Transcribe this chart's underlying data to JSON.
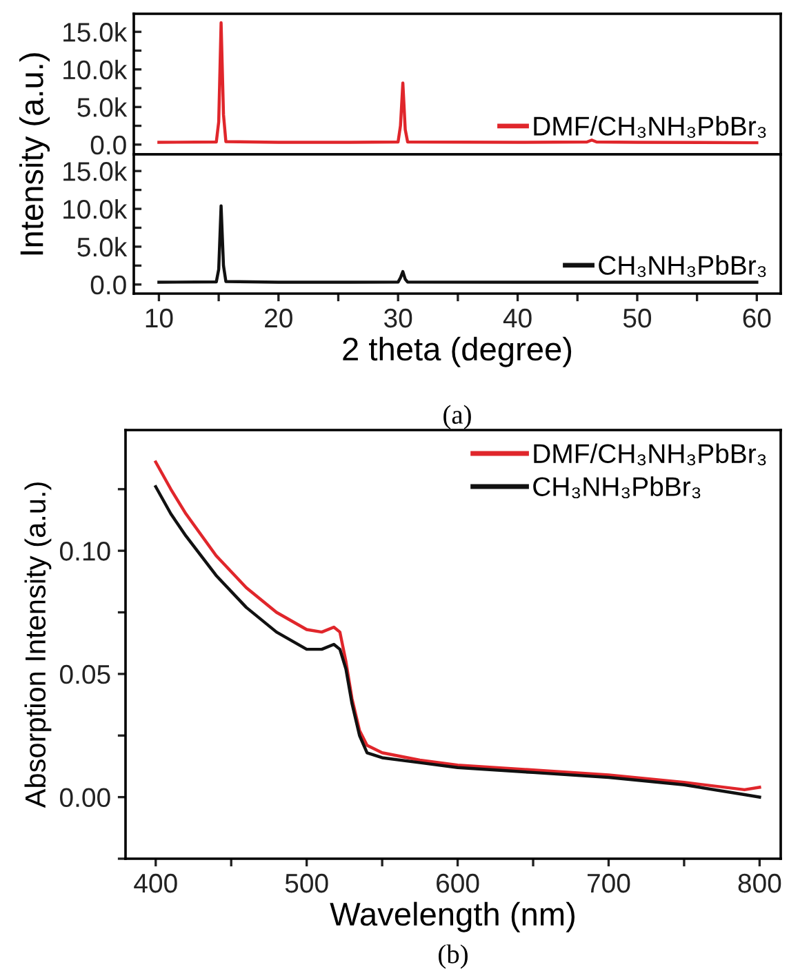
{
  "chart_data": [
    {
      "type": "line",
      "ylabel": "Intensity (a.u.)",
      "xlim": [
        7.9,
        62
      ],
      "xticks": [
        10,
        20,
        30,
        40,
        50,
        60
      ],
      "ylim": [
        -1300,
        17400
      ],
      "yticks": [
        {
          "value": 0,
          "label": "0.0"
        },
        {
          "value": 2500,
          "label": null
        },
        {
          "value": 5000,
          "label": "5.0k"
        },
        {
          "value": 7500,
          "label": null
        },
        {
          "value": 10000,
          "label": "10.0k"
        },
        {
          "value": 12500,
          "label": null
        },
        {
          "value": 15000,
          "label": "15.0k"
        }
      ],
      "tick_labels": "y",
      "legend": "lower right",
      "grid": false,
      "series": [
        {
          "name": "DMF/CH₃NH₃PbBr₃",
          "color": "#e0262b",
          "x": [
            10,
            14.8,
            15.0,
            15.2,
            15.4,
            15.6,
            20,
            25,
            30.0,
            30.2,
            30.4,
            30.6,
            30.8,
            40,
            45.8,
            46.2,
            46.6,
            50,
            60
          ],
          "values": [
            300,
            350,
            3000,
            16200,
            4000,
            400,
            300,
            300,
            350,
            2500,
            8200,
            2000,
            350,
            300,
            350,
            600,
            350,
            300,
            250
          ]
        }
      ]
    },
    {
      "type": "line",
      "xlabel": "2 theta (degree)",
      "annotations": [
        "(a)"
      ],
      "xlim": [
        7.9,
        62
      ],
      "xticks": [
        10,
        {
          "value": 15,
          "label": null
        },
        20,
        {
          "value": 25,
          "label": null
        },
        30,
        {
          "value": 35,
          "label": null
        },
        40,
        {
          "value": 45,
          "label": null
        },
        50,
        {
          "value": 55,
          "label": null
        },
        60
      ],
      "ylim": [
        -1200,
        17200
      ],
      "yticks": [
        {
          "value": 0,
          "label": "0.0"
        },
        {
          "value": 2500,
          "label": null
        },
        {
          "value": 5000,
          "label": "5.0k"
        },
        {
          "value": 7500,
          "label": null
        },
        {
          "value": 10000,
          "label": "10.0k"
        },
        {
          "value": 12500,
          "label": null
        },
        {
          "value": 15000,
          "label": "15.0k"
        }
      ],
      "legend": "lower right",
      "grid": false,
      "series": [
        {
          "name": "CH₃NH₃PbBr₃",
          "color": "#111111",
          "x": [
            10,
            14.8,
            15.0,
            15.2,
            15.4,
            15.6,
            20,
            25,
            30.0,
            30.2,
            30.4,
            30.6,
            30.8,
            40,
            50,
            60
          ],
          "values": [
            300,
            350,
            2000,
            10400,
            2500,
            400,
            300,
            300,
            320,
            900,
            1700,
            700,
            320,
            300,
            300,
            300
          ]
        }
      ]
    },
    {
      "type": "line",
      "xlabel": "Wavelength (nm)",
      "ylabel": "Absorption Intensity (a.u.)",
      "annotations": [
        "(b)"
      ],
      "xlim": [
        380,
        814
      ],
      "xticks": [
        400,
        {
          "value": 450,
          "label": null
        },
        500,
        {
          "value": 550,
          "label": null
        },
        600,
        {
          "value": 650,
          "label": null
        },
        700,
        {
          "value": 750,
          "label": null
        },
        800
      ],
      "ylim": [
        -0.025,
        0.149
      ],
      "yticks": [
        {
          "value": -0.025,
          "label": null
        },
        {
          "value": 0,
          "label": "0.00"
        },
        {
          "value": 0.025,
          "label": null
        },
        {
          "value": 0.05,
          "label": "0.05"
        },
        {
          "value": 0.075,
          "label": null
        },
        {
          "value": 0.1,
          "label": "0.10"
        },
        {
          "value": 0.125,
          "label": null
        }
      ],
      "legend": "top right",
      "grid": false,
      "series": [
        {
          "name": "DMF/CH₃NH₃PbBr₃",
          "color": "#e0262b",
          "x": [
            400,
            410,
            420,
            440,
            460,
            480,
            500,
            510,
            518,
            522,
            526,
            530,
            535,
            540,
            550,
            575,
            600,
            650,
            700,
            750,
            790,
            800
          ],
          "values": [
            0.136,
            0.125,
            0.115,
            0.098,
            0.085,
            0.075,
            0.068,
            0.067,
            0.069,
            0.067,
            0.055,
            0.04,
            0.027,
            0.021,
            0.018,
            0.015,
            0.013,
            0.011,
            0.009,
            0.006,
            0.003,
            0.004
          ]
        },
        {
          "name": "CH₃NH₃PbBr₃",
          "color": "#111111",
          "x": [
            400,
            410,
            420,
            440,
            460,
            480,
            500,
            510,
            518,
            522,
            526,
            530,
            535,
            540,
            550,
            575,
            600,
            650,
            700,
            750,
            790,
            800
          ],
          "values": [
            0.126,
            0.115,
            0.106,
            0.09,
            0.077,
            0.067,
            0.06,
            0.06,
            0.062,
            0.06,
            0.052,
            0.038,
            0.025,
            0.018,
            0.016,
            0.014,
            0.012,
            0.01,
            0.008,
            0.005,
            0.001,
            0.0
          ]
        }
      ]
    }
  ]
}
